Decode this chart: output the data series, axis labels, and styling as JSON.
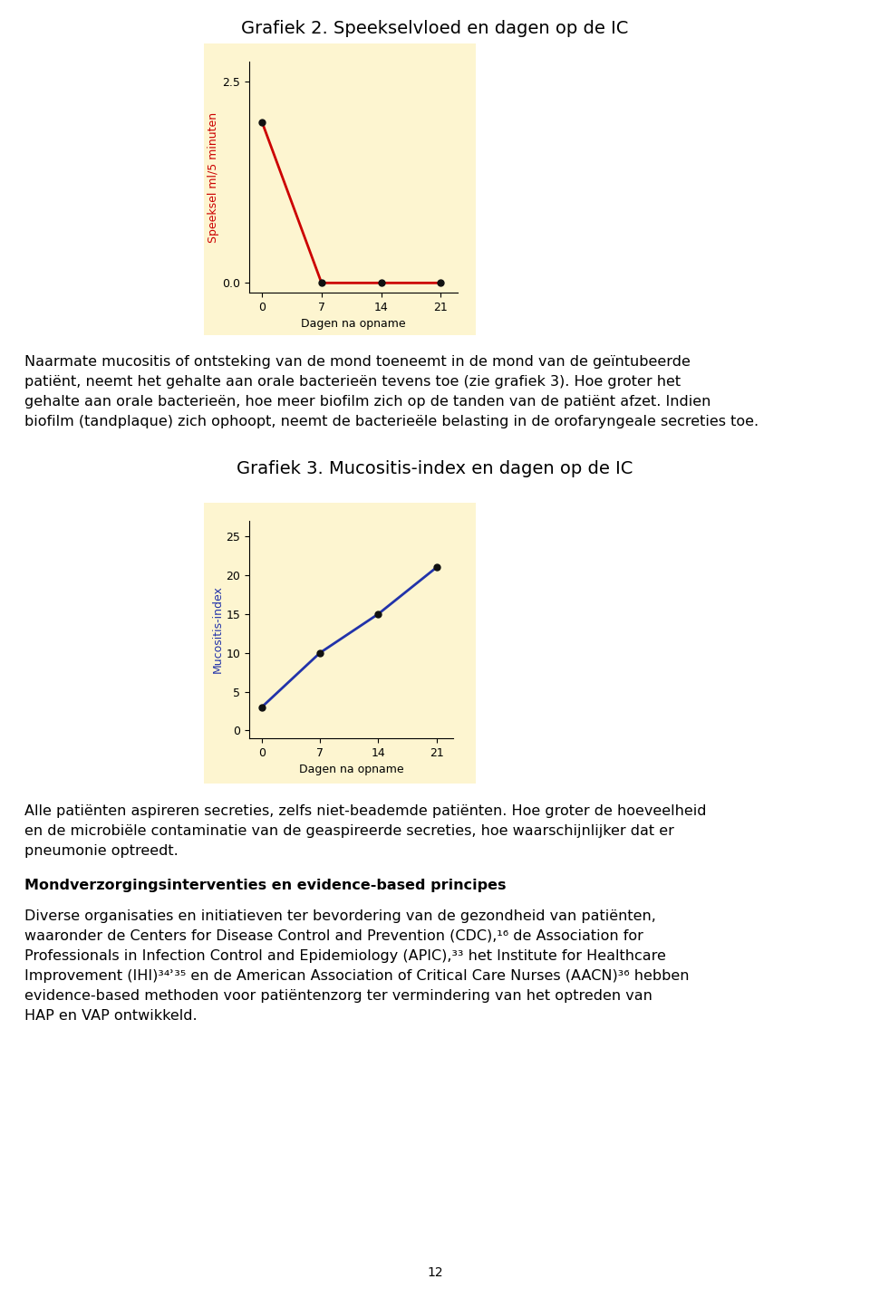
{
  "title1": "Grafiek 2. Speekselvloed en dagen op de IC",
  "title2": "Grafiek 3. Mucositis-index en dagen op de IC",
  "graph1": {
    "x": [
      0,
      7,
      14,
      21
    ],
    "y": [
      2.0,
      0.0,
      0.0,
      0.0
    ],
    "ylabel": "Speeksel ml/5 minuten",
    "xlabel": "Dagen na opname",
    "xlim": [
      -1.5,
      23
    ],
    "ylim": [
      -0.12,
      2.75
    ],
    "xticks": [
      0,
      7,
      14,
      21
    ],
    "yticks": [
      0.0,
      2.5
    ],
    "line_color": "#cc0000",
    "marker_color": "#111111",
    "bg_color": "#fdf5d0",
    "ylabel_color": "#cc0000"
  },
  "graph2": {
    "x": [
      0,
      7,
      14,
      21
    ],
    "y": [
      3,
      10,
      15,
      21
    ],
    "ylabel": "Mucositis-index",
    "xlabel": "Dagen na opname",
    "xlim": [
      -1.5,
      23
    ],
    "ylim": [
      -1,
      27
    ],
    "xticks": [
      0,
      7,
      14,
      21
    ],
    "yticks": [
      0,
      5,
      10,
      15,
      20,
      25
    ],
    "line_color": "#2233aa",
    "marker_color": "#111111",
    "bg_color": "#fdf5d0",
    "ylabel_color": "#2233aa"
  },
  "para1_lines": [
    "Naarmate mucositis of ontsteking van de mond toeneemt in de mond van de geïntubeerde",
    "patiënt, neemt het gehalte aan orale bacterieën tevens toe (zie grafiek 3). Hoe groter het",
    "gehalte aan orale bacterieën, hoe meer biofilm zich op de tanden van de patiënt afzet. Indien",
    "biofilm (tandplaque) zich ophoopt, neemt de bacterieële belasting in de orofaryngeale secreties toe."
  ],
  "para2_lines": [
    "Alle patiënten aspireren secreties, zelfs niet-beademde patiënten. Hoe groter de hoeveelheid",
    "en de microbiële contaminatie van de geaspireerde secreties, hoe waarschijnlijker dat er",
    "pneumonie optreedt."
  ],
  "para3_bold": "Mondverzorgingsinterventies en evidence-based principes",
  "para4_lines": [
    "Diverse organisaties en initiatieven ter bevordering van de gezondheid van patiënten,",
    "waaronder de Centers for Disease Control and Prevention (CDC),¹⁶ de Association for",
    "Professionals in Infection Control and Epidemiology (APIC),³³ het Institute for Healthcare",
    "Improvement (IHI)³⁴ʾ³⁵ en de American Association of Critical Care Nurses (AACN)³⁶ hebben",
    "evidence-based methoden voor patiëntenzorg ter vermindering van het optreden van",
    "HAP en VAP ontwikkeld."
  ],
  "page_number": "12",
  "bg_page": "#ffffff",
  "text_color": "#000000"
}
